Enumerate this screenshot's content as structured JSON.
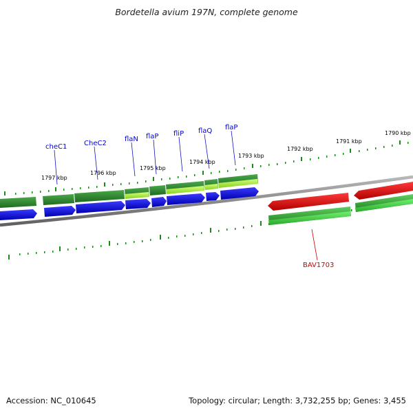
{
  "title": "Bordetella avium 197N, complete genome",
  "footer": {
    "accession": "Accession: NC_010645",
    "summary": "Topology: circular; Length: 3,732,255 bp; Genes: 3,455"
  },
  "colors": {
    "backbone": "#8c8c8c",
    "gene_forward": "#2f8f2f",
    "gene_forward_light": "#a8f040",
    "cds": "#1010e0",
    "gene_reverse": "#2faa2f",
    "cds_reverse": "#e01010",
    "tick": "#1a8a1a",
    "label_gene": "#0000cc",
    "label_highlight": "#cc0000"
  },
  "scale_labels": [
    "1797 kbp",
    "1796 kbp",
    "1795 kbp",
    "1794 kbp",
    "1793 kbp",
    "1792 kbp",
    "1791 kbp",
    "1790 kbp"
  ],
  "gene_labels": [
    "cheC1",
    "CheC2",
    "flaN",
    "flaP",
    "fliP",
    "flaQ",
    "flaP",
    "BAV1703"
  ]
}
